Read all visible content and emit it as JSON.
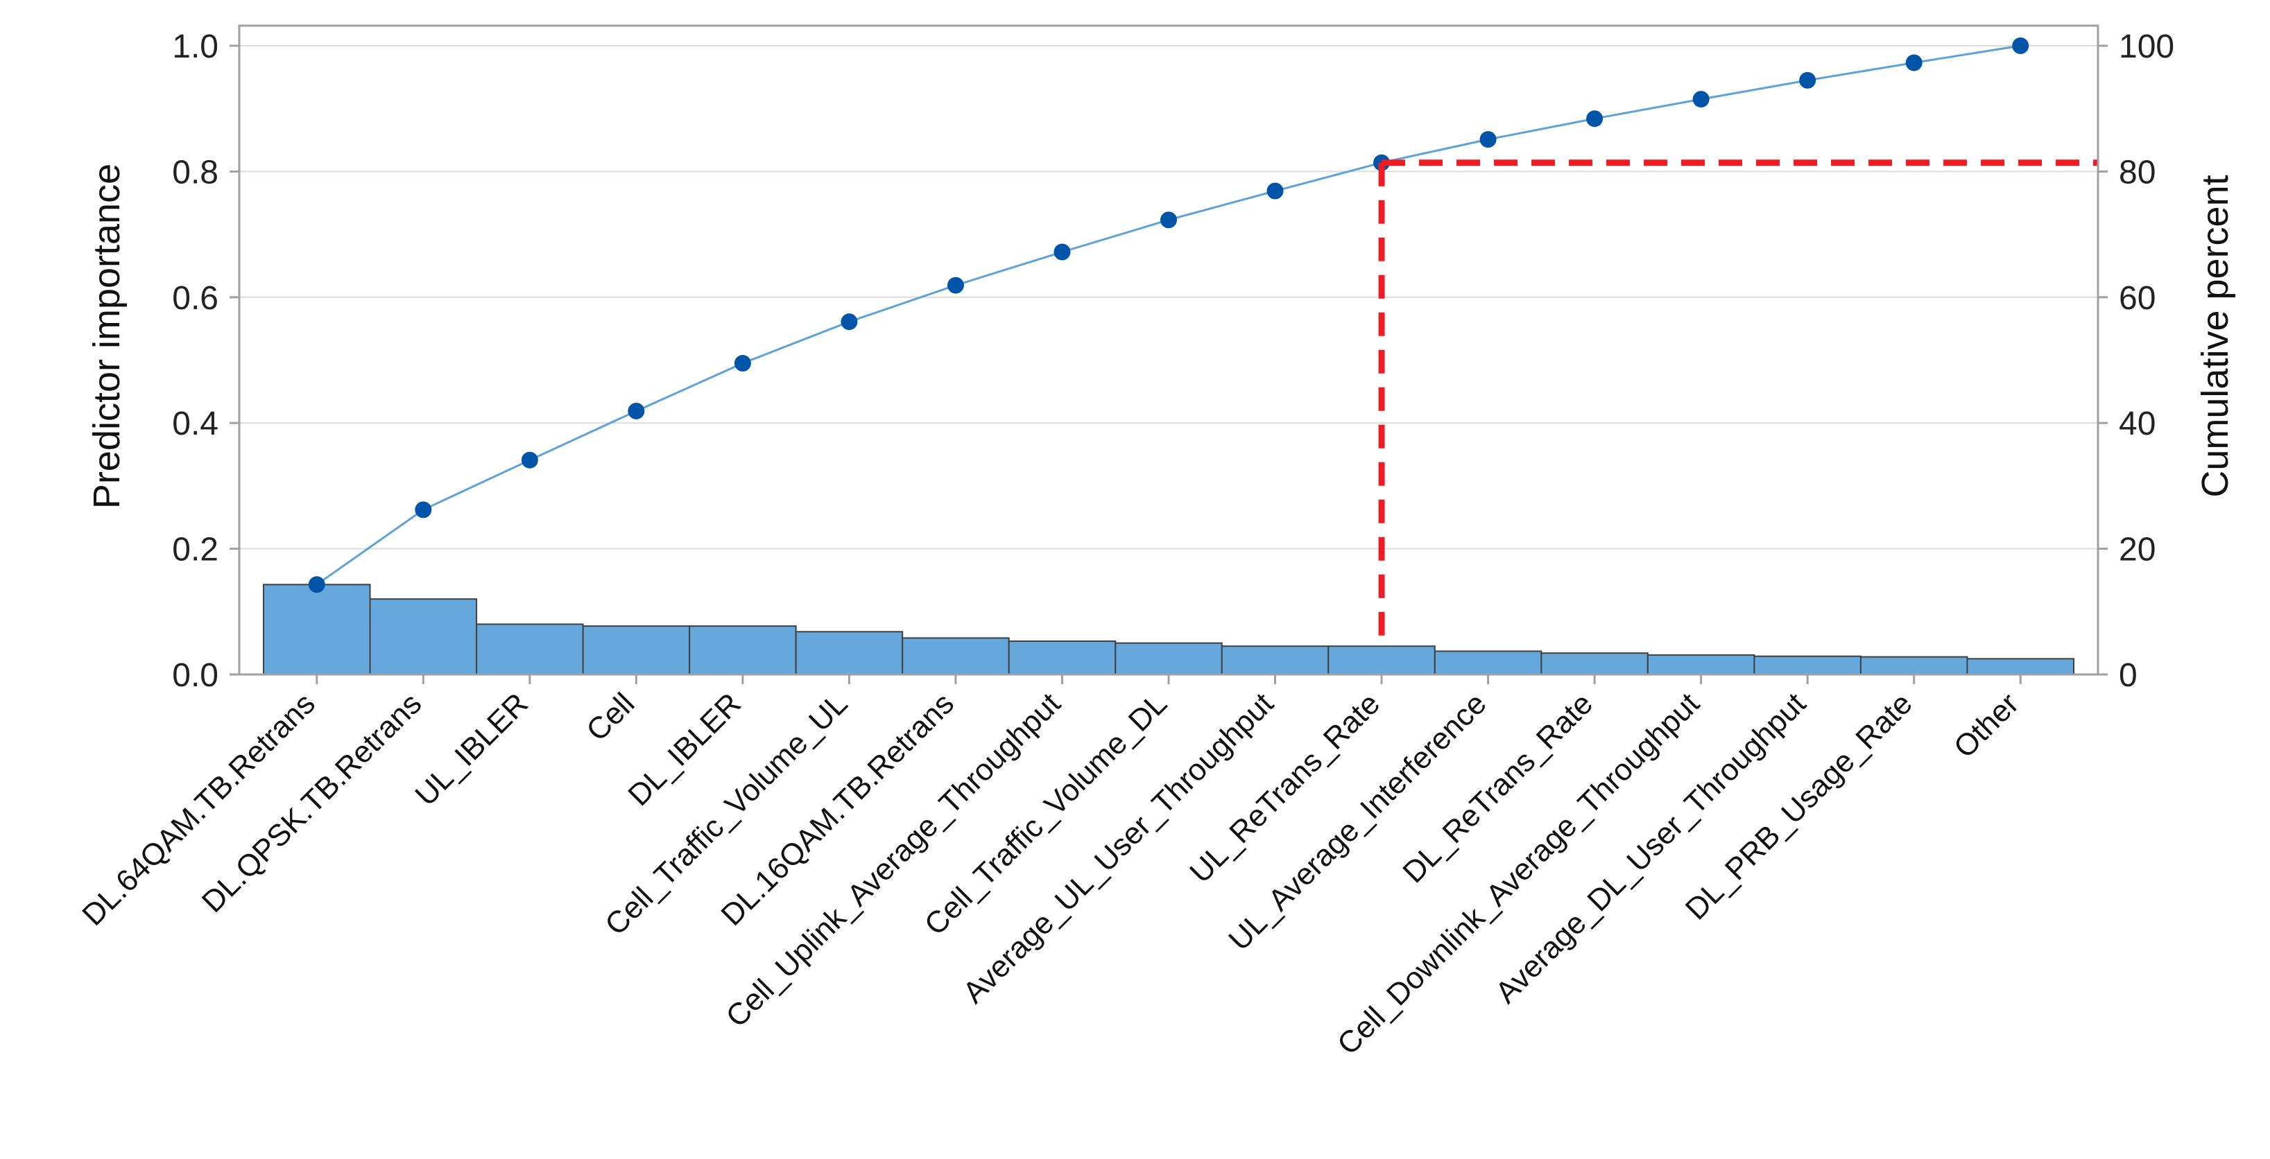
{
  "chart_data": {
    "type": "bar",
    "title": "",
    "ylabel": "Predictor importance",
    "ylabel_right": "Cumulative percent",
    "xlabel": "",
    "ylim": [
      0,
      1.0
    ],
    "ylim_right": [
      0,
      100
    ],
    "yticks": [
      "0.0",
      "0.2",
      "0.4",
      "0.6",
      "0.8",
      "1.0"
    ],
    "yticks_right": [
      "0",
      "20",
      "40",
      "60",
      "80",
      "100"
    ],
    "grid": true,
    "categories": [
      "DL.64QAM.TB.Retrans",
      "DL.QPSK.TB.Retrans",
      "UL_IBLER",
      "Cell",
      "DL_IBLER",
      "Cell_Traffic_Volume_UL",
      "DL.16QAM.TB.Retrans",
      "Cell_Uplink_Average_Throughput",
      "Cell_Traffic_Volume_DL",
      "Average_UL_User_Throughput",
      "UL_ReTrans_Rate",
      "UL_Average_Interference",
      "DL_ReTrans_Rate",
      "Cell_Downlink_Average_Throughput",
      "Average_DL_User_Throughput",
      "DL_PRB_Usage_Rate",
      "Other"
    ],
    "series": [
      {
        "kind": "bar",
        "axis": "left",
        "values": [
          0.143,
          0.12,
          0.08,
          0.077,
          0.077,
          0.068,
          0.058,
          0.053,
          0.05,
          0.045,
          0.045,
          0.037,
          0.034,
          0.031,
          0.029,
          0.028,
          0.025
        ]
      },
      {
        "kind": "line",
        "axis": "right",
        "values": [
          14.3,
          26.2,
          34.1,
          41.9,
          49.5,
          56.1,
          61.9,
          67.2,
          72.3,
          76.9,
          81.4,
          85.1,
          88.4,
          91.5,
          94.5,
          97.3,
          100.0
        ]
      }
    ],
    "annotation": {
      "type": "threshold-lines",
      "category_index": 10,
      "cumulative_value": 81.4,
      "color": "#ee1c25"
    },
    "colors": {
      "bar_fill": "#66a8dc",
      "bar_stroke": "#404040",
      "line": "#5da2d8",
      "marker": "#0055a8",
      "grid": "#dcdcdc",
      "frame": "#a0a0a0"
    }
  }
}
